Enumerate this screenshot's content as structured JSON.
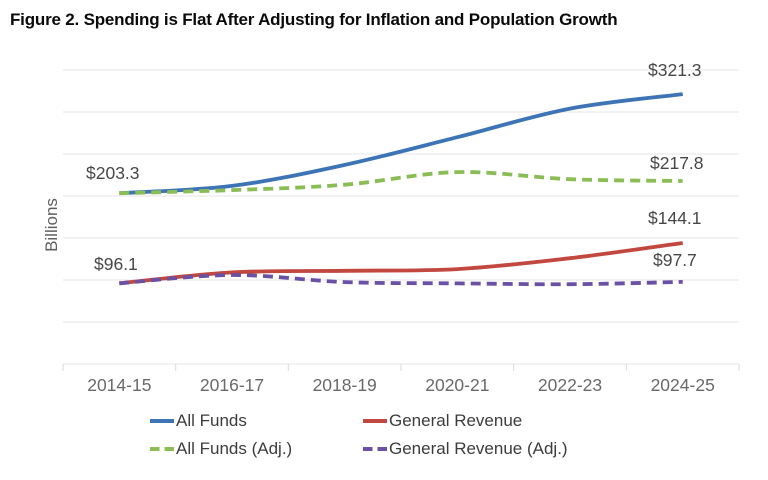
{
  "title": "Figure 2. Spending is Flat After Adjusting for Inflation and Population Growth",
  "chart_data": {
    "type": "line",
    "title": "Figure 2. Spending is Flat After Adjusting for Inflation and Population Growth",
    "categories": [
      "2014-15",
      "2016-17",
      "2018-19",
      "2020-21",
      "2022-23",
      "2024-25"
    ],
    "series": [
      {
        "name": "All Funds",
        "color": "#3D74B5",
        "dashed": false,
        "values": [
          203.3,
          212.0,
          237.0,
          270.0,
          304.0,
          321.3
        ]
      },
      {
        "name": "All Funds (Adj.)",
        "color": "#8BBD56",
        "dashed": true,
        "values": [
          203.3,
          207.0,
          213.5,
          228.5,
          220.0,
          217.8
        ]
      },
      {
        "name": "General Revenue",
        "color": "#C2473F",
        "dashed": false,
        "values": [
          96.1,
          109.0,
          111.0,
          113.0,
          126.0,
          144.1
        ]
      },
      {
        "name": "General Revenue (Adj.)",
        "color": "#6B51A3",
        "dashed": true,
        "values": [
          96.1,
          106.0,
          97.5,
          96.0,
          95.0,
          97.7
        ]
      }
    ],
    "xlabel": "",
    "ylabel": "Billions",
    "ylim": [
      0,
      350
    ],
    "grid_step": 50,
    "grid": true,
    "y_tick_labels_visible": false,
    "legend_position": "bottom",
    "colors": {
      "grid": "#E4E4E4",
      "tick": "#DADADA"
    },
    "annotations": [
      {
        "series": "All Funds",
        "point": "2014-15",
        "text": "$203.3"
      },
      {
        "series": "All Funds",
        "point": "2024-25",
        "text": "$321.3"
      },
      {
        "series": "All Funds (Adj.)",
        "point": "2024-25",
        "text": "$217.8"
      },
      {
        "series": "General Revenue",
        "point": "2014-15",
        "text": "$96.1"
      },
      {
        "series": "General Revenue",
        "point": "2024-25",
        "text": "$144.1"
      },
      {
        "series": "General Revenue (Adj.)",
        "point": "2024-25",
        "text": "$97.7"
      }
    ]
  }
}
